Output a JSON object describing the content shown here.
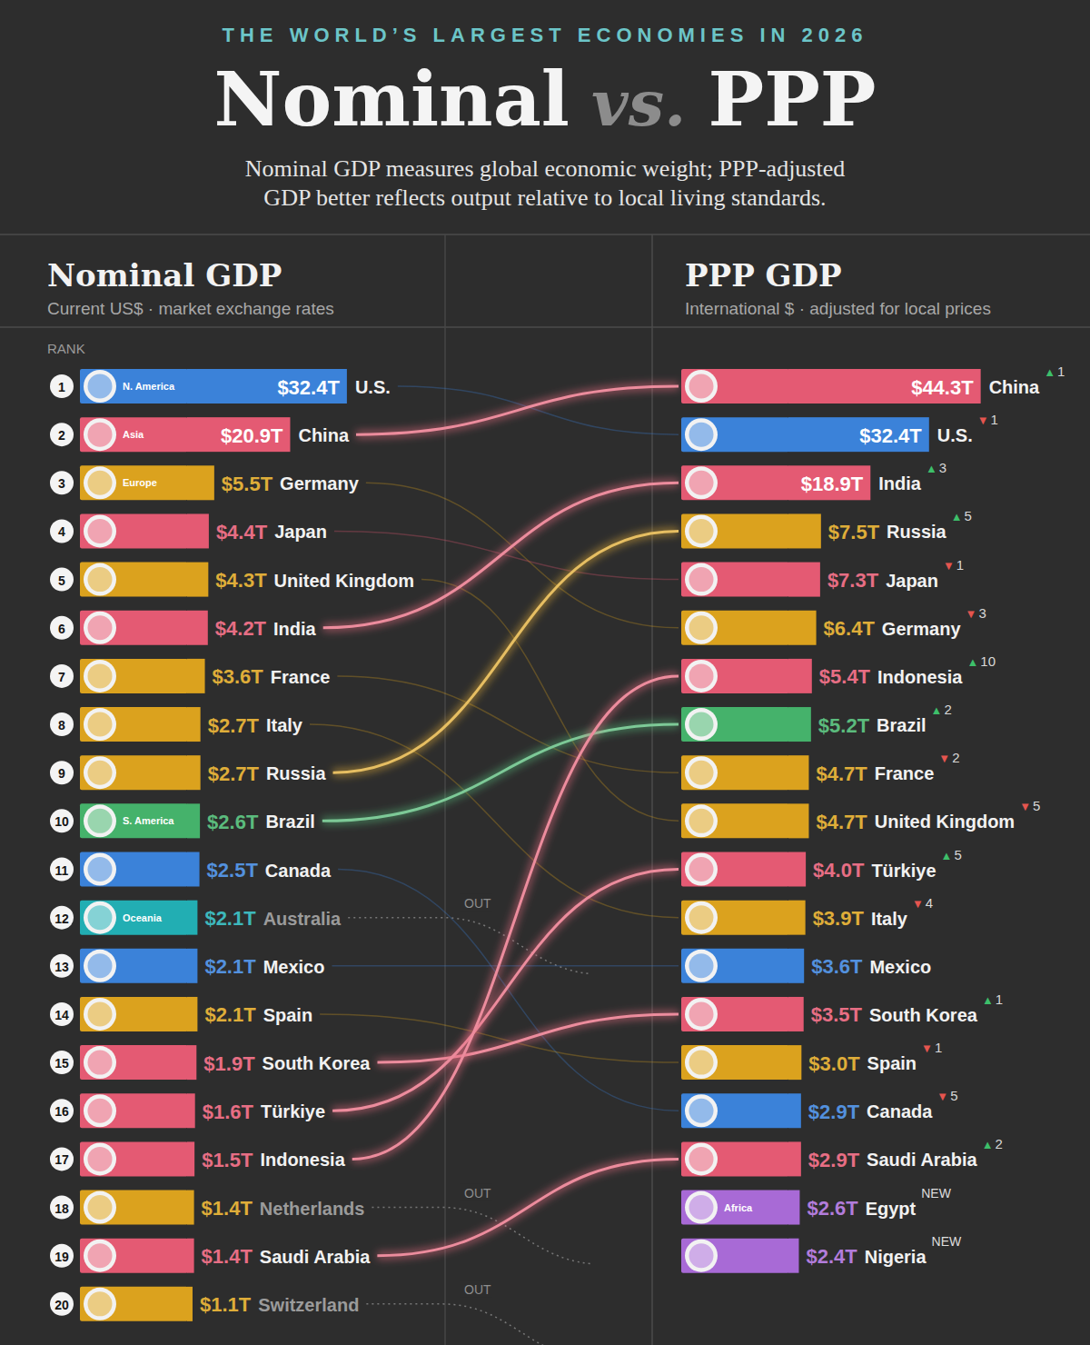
{
  "header": {
    "kicker": "THE WORLD’S LARGEST ECONOMIES IN 2026",
    "title": [
      "Nominal",
      "vs.",
      "PPP"
    ],
    "subtitle": [
      "Nominal GDP measures global economic weight; PPP-adjusted",
      "GDP better reflects output relative to local living standards."
    ]
  },
  "chart_data": [
    {
      "type": "bar",
      "orientation": "horizontal",
      "data_labels": true,
      "tick_labels": false,
      "title": "Nominal GDP",
      "subtitle": "Current US$ · market exchange rates",
      "rank_label": "RANK",
      "xlim": [
        0,
        35
      ],
      "categories": [
        "U.S.",
        "China",
        "Germany",
        "Japan",
        "United Kingdom",
        "India",
        "France",
        "Italy",
        "Russia",
        "Brazil",
        "Canada",
        "Australia",
        "Mexico",
        "Spain",
        "South Korea",
        "Türkiye",
        "Indonesia",
        "Netherlands",
        "Saudi Arabia",
        "Switzerland"
      ],
      "ranks": [
        1,
        2,
        3,
        4,
        5,
        6,
        7,
        8,
        9,
        10,
        11,
        12,
        13,
        14,
        15,
        16,
        17,
        18,
        19,
        20
      ],
      "values": [
        32.4,
        20.9,
        5.5,
        4.4,
        4.3,
        4.2,
        3.6,
        2.7,
        2.7,
        2.6,
        2.5,
        2.1,
        2.1,
        2.1,
        1.9,
        1.6,
        1.5,
        1.4,
        1.4,
        1.1
      ],
      "value_labels": [
        "$32.4T",
        "$20.9T",
        "$5.5T",
        "$4.4T",
        "$4.3T",
        "$4.2T",
        "$3.6T",
        "$2.7T",
        "$2.7T",
        "$2.6T",
        "$2.5T",
        "$2.1T",
        "$2.1T",
        "$2.1T",
        "$1.9T",
        "$1.6T",
        "$1.5T",
        "$1.4T",
        "$1.4T",
        "$1.1T"
      ],
      "colors": [
        "#3b82d9",
        "#e45a73",
        "#dba21e",
        "#e45a73",
        "#dba21e",
        "#e45a73",
        "#dba21e",
        "#dba21e",
        "#dba21e",
        "#45b26b",
        "#3b82d9",
        "#22aeb3",
        "#3b82d9",
        "#dba21e",
        "#e45a73",
        "#e45a73",
        "#e45a73",
        "#dba21e",
        "#e45a73",
        "#dba21e"
      ],
      "region_labels": [
        "N. America",
        "Asia",
        "Europe",
        null,
        null,
        null,
        null,
        null,
        null,
        "S. America",
        null,
        "Oceania",
        null,
        null,
        null,
        null,
        null,
        null,
        null,
        null
      ],
      "status": [
        null,
        null,
        null,
        null,
        null,
        null,
        null,
        null,
        null,
        null,
        null,
        "OUT",
        null,
        null,
        null,
        null,
        null,
        "OUT",
        null,
        "OUT"
      ]
    },
    {
      "type": "bar",
      "orientation": "horizontal",
      "data_labels": true,
      "tick_labels": false,
      "title": "PPP GDP",
      "subtitle": "International $ · adjusted for local prices",
      "xlim": [
        0,
        45
      ],
      "categories": [
        "China",
        "U.S.",
        "India",
        "Russia",
        "Japan",
        "Germany",
        "Indonesia",
        "Brazil",
        "France",
        "United Kingdom",
        "Türkiye",
        "Italy",
        "Mexico",
        "South Korea",
        "Spain",
        "Canada",
        "Saudi Arabia",
        "Egypt",
        "Nigeria"
      ],
      "values": [
        44.3,
        32.4,
        18.9,
        7.5,
        7.3,
        6.4,
        5.4,
        5.2,
        4.7,
        4.7,
        4.0,
        3.9,
        3.6,
        3.5,
        3.0,
        2.9,
        2.9,
        2.6,
        2.4
      ],
      "value_labels": [
        "$44.3T",
        "$32.4T",
        "$18.9T",
        "$7.5T",
        "$7.3T",
        "$6.4T",
        "$5.4T",
        "$5.2T",
        "$4.7T",
        "$4.7T",
        "$4.0T",
        "$3.9T",
        "$3.6T",
        "$3.5T",
        "$3.0T",
        "$2.9T",
        "$2.9T",
        "$2.6T",
        "$2.4T"
      ],
      "colors": [
        "#e45a73",
        "#3b82d9",
        "#e45a73",
        "#dba21e",
        "#e45a73",
        "#dba21e",
        "#e45a73",
        "#45b26b",
        "#dba21e",
        "#dba21e",
        "#e45a73",
        "#dba21e",
        "#3b82d9",
        "#e45a73",
        "#dba21e",
        "#3b82d9",
        "#e45a73",
        "#a86ad6",
        "#a86ad6"
      ],
      "region_labels": [
        null,
        null,
        null,
        null,
        null,
        null,
        null,
        null,
        null,
        null,
        null,
        null,
        null,
        null,
        null,
        null,
        null,
        "Africa",
        null
      ],
      "rank_changes": [
        1,
        -1,
        3,
        5,
        -1,
        -3,
        10,
        2,
        -2,
        -5,
        5,
        -4,
        null,
        1,
        -1,
        -5,
        2,
        null,
        null
      ],
      "rank_change_labels": [
        "▲1",
        "▼1",
        "▲3",
        "▲5",
        "▼1",
        "▼3",
        "▲10",
        "▲2",
        "▼2",
        "▼5",
        "▲5",
        "▼4",
        null,
        "▲1",
        "▼1",
        "▼5",
        "▲2",
        null,
        null
      ],
      "status": [
        null,
        null,
        null,
        null,
        null,
        null,
        null,
        null,
        null,
        null,
        null,
        null,
        null,
        null,
        null,
        null,
        null,
        "NEW",
        "NEW"
      ]
    }
  ]
}
